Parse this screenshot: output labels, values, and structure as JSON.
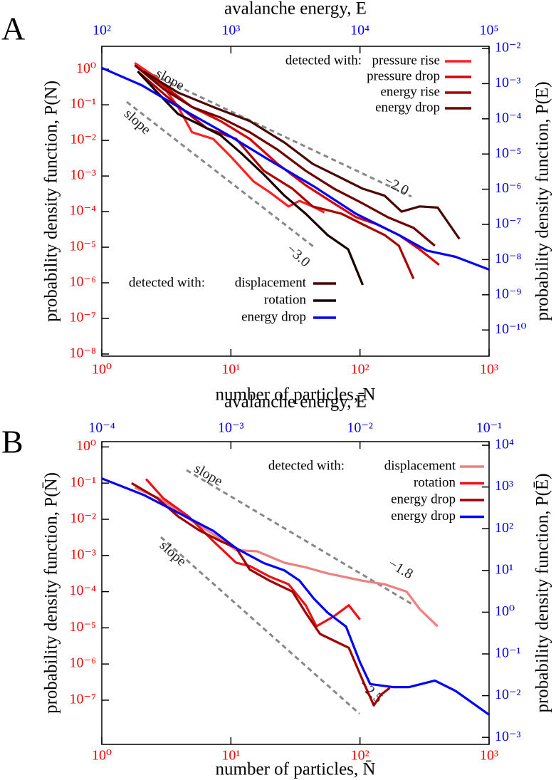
{
  "chart_data": [
    {
      "type": "line",
      "panel_label": "A",
      "xlabel": "number of particles, N",
      "x2label": "avalanche energy, E",
      "ylabel": "probability density function, P(N)",
      "y2label": "probability density function, P(E)",
      "xscale": "log",
      "yscale": "log",
      "xlim": [
        1,
        1000
      ],
      "x2lim": [
        100,
        100000
      ],
      "ylim": [
        8.7e-09,
        4.4
      ],
      "y2lim": [
        1.8e-11,
        0.0115
      ],
      "xticks": [
        {
          "value": 1,
          "label": "10⁰"
        },
        {
          "value": 10,
          "label": "10¹"
        },
        {
          "value": 100,
          "label": "10²"
        },
        {
          "value": 1000,
          "label": "10³"
        }
      ],
      "x2ticks": [
        {
          "value": 100,
          "label": "10²"
        },
        {
          "value": 1000,
          "label": "10³"
        },
        {
          "value": 10000,
          "label": "10⁴"
        },
        {
          "value": 100000,
          "label": "10⁵"
        }
      ],
      "yticks": [
        {
          "value": 1,
          "label": "10⁰"
        },
        {
          "value": 0.1,
          "label": "10⁻¹"
        },
        {
          "value": 0.01,
          "label": "10⁻²"
        },
        {
          "value": 0.001,
          "label": "10⁻³"
        },
        {
          "value": 0.0001,
          "label": "10⁻⁴"
        },
        {
          "value": 1e-05,
          "label": "10⁻⁵"
        },
        {
          "value": 1e-06,
          "label": "10⁻⁶"
        },
        {
          "value": 1e-07,
          "label": "10⁻⁷"
        },
        {
          "value": 1e-08,
          "label": "10⁻⁸"
        }
      ],
      "y2ticks": [
        {
          "value": 0.01,
          "label": "10⁻²"
        },
        {
          "value": 0.001,
          "label": "10⁻³"
        },
        {
          "value": 0.0001,
          "label": "10⁻⁴"
        },
        {
          "value": 1e-05,
          "label": "10⁻⁵"
        },
        {
          "value": 1e-06,
          "label": "10⁻⁶"
        },
        {
          "value": 1e-07,
          "label": "10⁻⁷"
        },
        {
          "value": 1e-08,
          "label": "10⁻⁸"
        },
        {
          "value": 1e-09,
          "label": "10⁻⁹"
        },
        {
          "value": 1e-10,
          "label": "10⁻¹⁰"
        }
      ],
      "tick_colors": {
        "x": "#ff0000",
        "y": "#ff0000",
        "x2": "#0000ff",
        "y2": "#0000ff"
      },
      "legends": [
        {
          "loc": "upper right",
          "title": "detected with:"
        },
        {
          "loc": "lower left",
          "title": "detected with:"
        }
      ],
      "annotations": [
        "slope",
        "slope",
        "−2.0",
        "−3.0"
      ],
      "series": [
        {
          "name": "pressure rise",
          "color": "#ff2020",
          "legend_loc": "upper right",
          "x": [
            1.8,
            2.7,
            3.9,
            5.0,
            7.3,
            10,
            15,
            20,
            28,
            34,
            43,
            53
          ],
          "values": [
            1.5,
            0.55,
            0.087,
            0.017,
            0.011,
            0.0035,
            0.0007,
            0.00035,
            0.00014,
            0.0002,
            0.00014,
            9.5e-05
          ]
        },
        {
          "name": "pressure drop",
          "color": "#dd0000",
          "legend_loc": "upper right",
          "x": [
            1.9,
            3.0,
            5.0,
            8.3,
            14,
            23,
            38,
            63,
            93,
            135,
            200,
            290,
            410
          ],
          "values": [
            1.1,
            0.35,
            0.087,
            0.035,
            0.011,
            0.0022,
            0.00055,
            0.00017,
            7e-05,
            4.4e-05,
            2.2e-05,
            8.7e-06,
            3.2e-06
          ]
        },
        {
          "name": "energy rise",
          "color": "#aa0000",
          "legend_loc": "upper right",
          "x": [
            1.9,
            3.4,
            6.5,
            11,
            18,
            30,
            43,
            72,
            105,
            155,
            200,
            260
          ],
          "values": [
            0.87,
            0.14,
            0.022,
            0.011,
            0.0014,
            0.00044,
            0.00014,
            8.7e-05,
            4.4e-05,
            2.2e-05,
            1.1e-05,
            1.3e-06
          ]
        },
        {
          "name": "energy drop",
          "color": "#700000",
          "legend_loc": "upper right",
          "x": [
            1.8,
            3.0,
            5.0,
            8.3,
            14,
            23,
            38,
            63,
            105,
            165,
            260,
            380
          ],
          "values": [
            1.3,
            0.28,
            0.087,
            0.044,
            0.017,
            0.0055,
            0.0014,
            0.00044,
            0.00017,
            6.9e-05,
            3.5e-05,
            1.1e-05
          ]
        },
        {
          "name": "displacement",
          "color": "#4a0505",
          "legend_loc": "lower left",
          "x": [
            2.1,
            3.9,
            7.3,
            14,
            26,
            43,
            72,
            105,
            155,
            210,
            290,
            400,
            590
          ],
          "values": [
            0.87,
            0.22,
            0.087,
            0.035,
            0.0087,
            0.0022,
            0.00087,
            0.00044,
            0.00028,
            0.0001,
            0.00014,
            0.00013,
            1.7e-05
          ]
        },
        {
          "name": "rotation",
          "color": "#1a0000",
          "legend_loc": "lower left",
          "x": [
            1.9,
            2.7,
            3.9,
            5.7,
            8.3,
            12,
            18,
            26,
            38,
            56,
            81,
            105
          ],
          "values": [
            0.87,
            0.22,
            0.055,
            0.028,
            0.014,
            0.0044,
            0.0011,
            0.00028,
            8.7e-05,
            2.2e-05,
            8.7e-06,
            8.7e-07
          ]
        },
        {
          "name": "energy drop",
          "color": "#0000ff",
          "legend_loc": "lower left",
          "axis": "y2",
          "xaxis": "x2",
          "x": [
            100,
            205,
            440,
            960,
            2000,
            4400,
            9300,
            20000,
            33000,
            55000,
            100000
          ],
          "values": [
            0.0028,
            0.00089,
            0.00017,
            3.4e-05,
            6.6e-06,
            1.2e-06,
            2e-07,
            5e-08,
            1.8e-08,
            1.2e-08,
            5.2e-09
          ]
        }
      ]
    },
    {
      "type": "line",
      "panel_label": "B",
      "xlabel": "number of particles, N̄",
      "x2label": "avalanche energy, Ē",
      "ylabel": "probability density function, P(N̄)",
      "y2label": "probability density function, P(Ē)",
      "xscale": "log",
      "yscale": "log",
      "xlim": [
        1,
        1000
      ],
      "x2lim": [
        0.0001,
        0.1
      ],
      "ylim": [
        6e-09,
        1.4
      ],
      "y2lim": [
        0.00068,
        12200
      ],
      "xticks": [
        {
          "value": 1,
          "label": "10⁰"
        },
        {
          "value": 10,
          "label": "10¹"
        },
        {
          "value": 100,
          "label": "10²"
        },
        {
          "value": 1000,
          "label": "10³"
        }
      ],
      "x2ticks": [
        {
          "value": 0.0001,
          "label": "10⁻⁴"
        },
        {
          "value": 0.001,
          "label": "10⁻³"
        },
        {
          "value": 0.01,
          "label": "10⁻²"
        },
        {
          "value": 0.1,
          "label": "10⁻¹"
        }
      ],
      "yticks": [
        {
          "value": 1,
          "label": "10⁰"
        },
        {
          "value": 0.1,
          "label": "10⁻¹"
        },
        {
          "value": 0.01,
          "label": "10⁻²"
        },
        {
          "value": 0.001,
          "label": "10⁻³"
        },
        {
          "value": 0.0001,
          "label": "10⁻⁴"
        },
        {
          "value": 1e-05,
          "label": "10⁻⁵"
        },
        {
          "value": 1e-06,
          "label": "10⁻⁶"
        },
        {
          "value": 1e-07,
          "label": "10⁻⁷"
        }
      ],
      "y2ticks": [
        {
          "value": 10000,
          "label": "10⁴"
        },
        {
          "value": 1000,
          "label": "10³"
        },
        {
          "value": 100,
          "label": "10²"
        },
        {
          "value": 10,
          "label": "10¹"
        },
        {
          "value": 1,
          "label": "10⁰"
        },
        {
          "value": 0.1,
          "label": "10⁻¹"
        },
        {
          "value": 0.01,
          "label": "10⁻²"
        },
        {
          "value": 0.001,
          "label": "10⁻³"
        }
      ],
      "tick_colors": {
        "x": "#ff0000",
        "y": "#ff0000",
        "x2": "#0000ff",
        "y2": "#0000ff"
      },
      "legends": [
        {
          "loc": "upper right",
          "title": "detected with:"
        }
      ],
      "annotations": [
        "slope",
        "slope",
        "−1.8",
        "−2.5"
      ],
      "series": [
        {
          "name": "displacement",
          "color": "#f08080",
          "legend_loc": "upper right",
          "x": [
            1.8,
            2.8,
            4.4,
            7.3,
            11,
            16,
            26,
            38,
            56,
            105,
            155,
            230,
            290,
            400
          ],
          "values": [
            0.075,
            0.038,
            0.012,
            0.0039,
            0.0014,
            0.0013,
            0.00063,
            0.00047,
            0.00032,
            0.0002,
            0.00016,
            0.0001,
            3.3e-05,
            1.1e-05
          ]
        },
        {
          "name": "rotation",
          "color": "#ee1111",
          "legend_loc": "upper right",
          "x": [
            2.2,
            3.0,
            4.7,
            7.3,
            11,
            14,
            20,
            28,
            38,
            46,
            63,
            82,
            100
          ],
          "values": [
            0.13,
            0.038,
            0.012,
            0.0025,
            0.00063,
            0.00051,
            0.00026,
            0.00016,
            4.2e-05,
            1.1e-05,
            2.1e-05,
            4.2e-05,
            1.7e-05
          ]
        },
        {
          "name": "energy drop",
          "color": "#a00000",
          "legend_loc": "upper right",
          "x": [
            1.7,
            2.7,
            3.9,
            5.7,
            8.3,
            11,
            14,
            20,
            30,
            38,
            49,
            63,
            82,
            105,
            128,
            145,
            170
          ],
          "values": [
            0.1,
            0.038,
            0.012,
            0.0049,
            0.0025,
            0.0016,
            0.00041,
            0.0002,
            0.0001,
            2.6e-05,
            6.8e-06,
            4.4e-06,
            2.8e-06,
            3.5e-07,
            7.2e-08,
            1.4e-07,
            2.2e-07
          ]
        },
        {
          "name": "energy drop",
          "color": "#0000ff",
          "legend_loc": "upper right",
          "axis": "y2",
          "xaxis": "x2",
          "x": [
            0.0001,
            0.00021,
            0.00044,
            0.00073,
            0.0011,
            0.0018,
            0.0026,
            0.0034,
            0.0044,
            0.0056,
            0.0078,
            0.01,
            0.012,
            0.018,
            0.024,
            0.038,
            0.055,
            0.1
          ],
          "values": [
            1600,
            650,
            200,
            89,
            34,
            15,
            10,
            5.7,
            2.1,
            0.98,
            0.45,
            0.063,
            0.019,
            0.016,
            0.016,
            0.023,
            0.013,
            0.0035
          ]
        }
      ]
    }
  ]
}
